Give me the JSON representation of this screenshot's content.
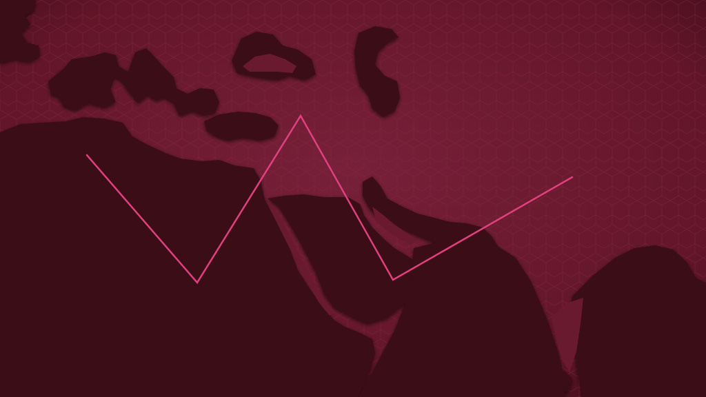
{
  "colors": {
    "ocean": "#6e1a30",
    "ocean_edge": "#3e0c1b",
    "hex_grid": "#82223d",
    "land": "#3a0b18",
    "land_edge": "#2a0711",
    "line": "#e0407f"
  },
  "route": {
    "style": "zigzag-line",
    "point_count": 5
  }
}
